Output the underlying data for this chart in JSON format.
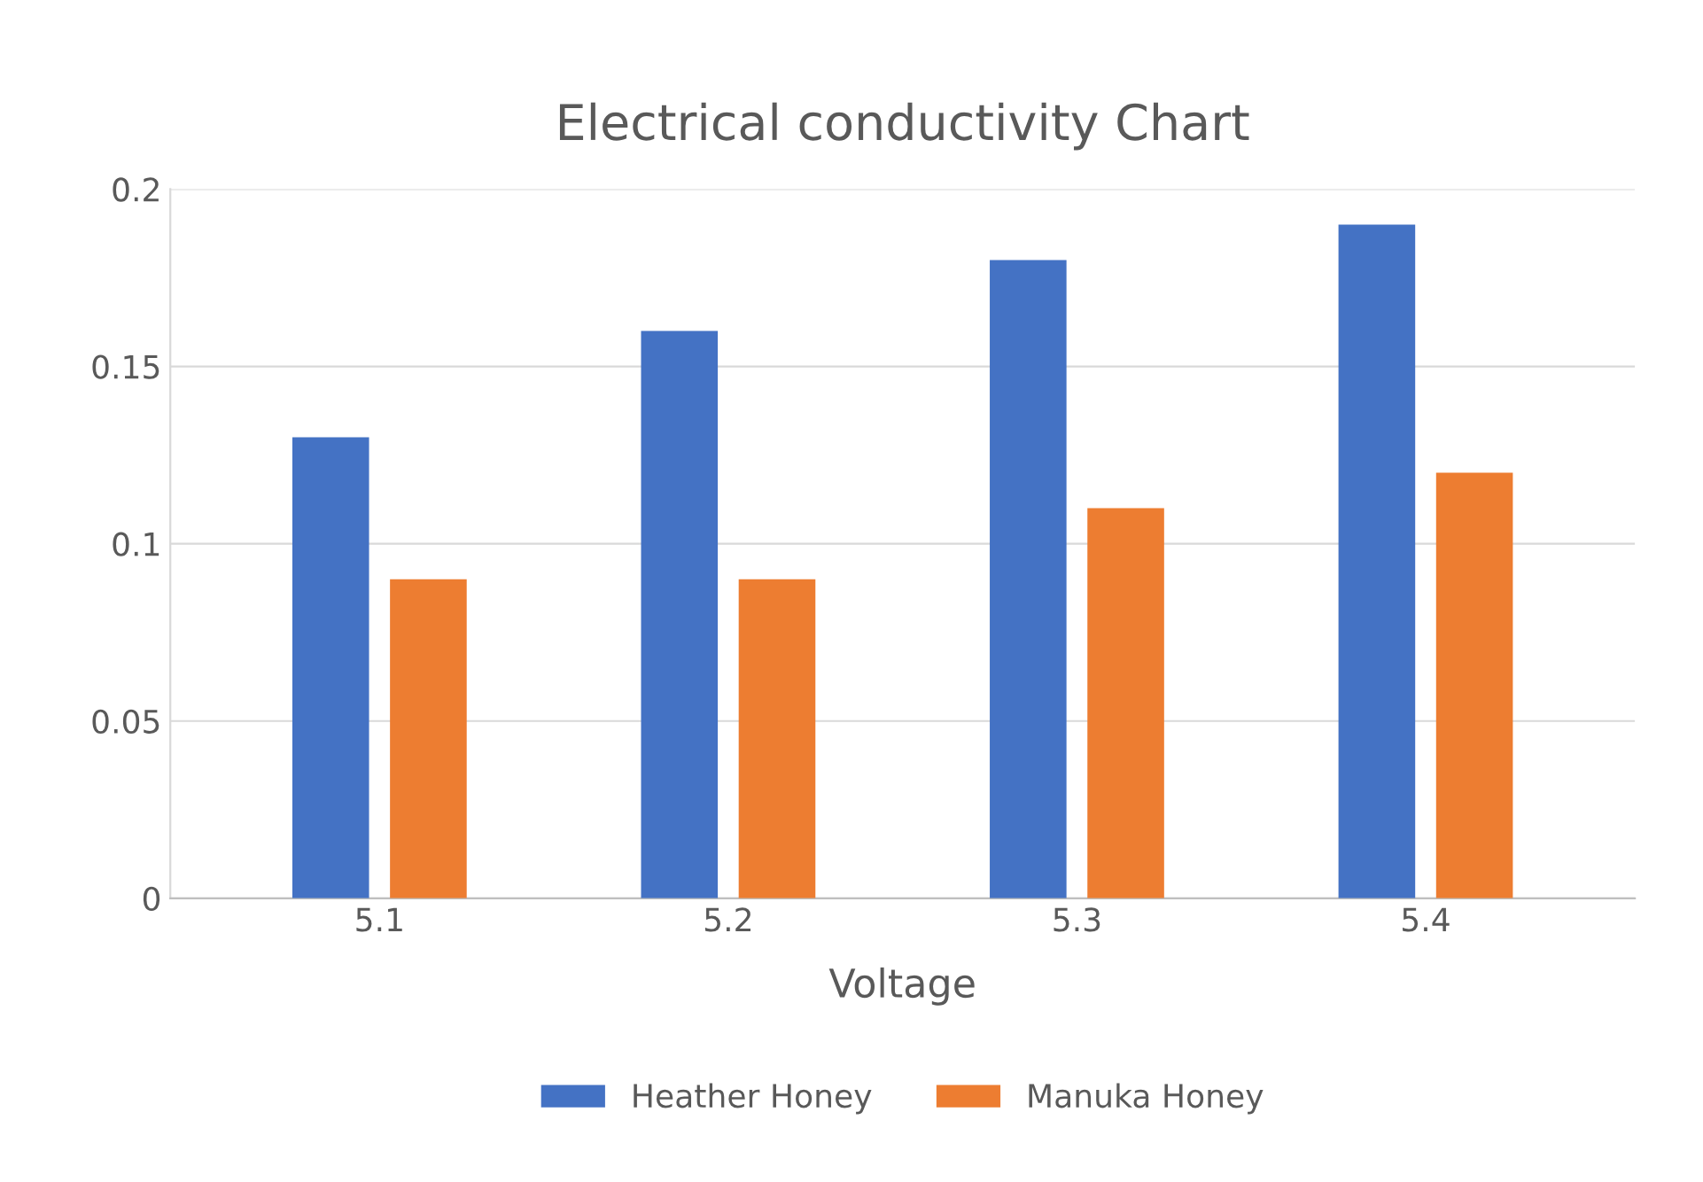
{
  "chart_data": {
    "type": "bar",
    "title": "Electrical conductivity Chart",
    "xlabel": "Voltage",
    "categories": [
      "5.1",
      "5.2",
      "5.3",
      "5.4"
    ],
    "series": [
      {
        "name": "Heather Honey",
        "color": "#4472c4",
        "values": [
          0.13,
          0.16,
          0.18,
          0.19
        ]
      },
      {
        "name": "Manuka Honey",
        "color": "#ed7d31",
        "values": [
          0.09,
          0.09,
          0.11,
          0.12
        ]
      }
    ],
    "ylim": [
      0,
      0.2
    ],
    "yticks": [
      0,
      0.05,
      0.1,
      0.15,
      0.2
    ],
    "grid": "y",
    "legend": "bottom"
  }
}
